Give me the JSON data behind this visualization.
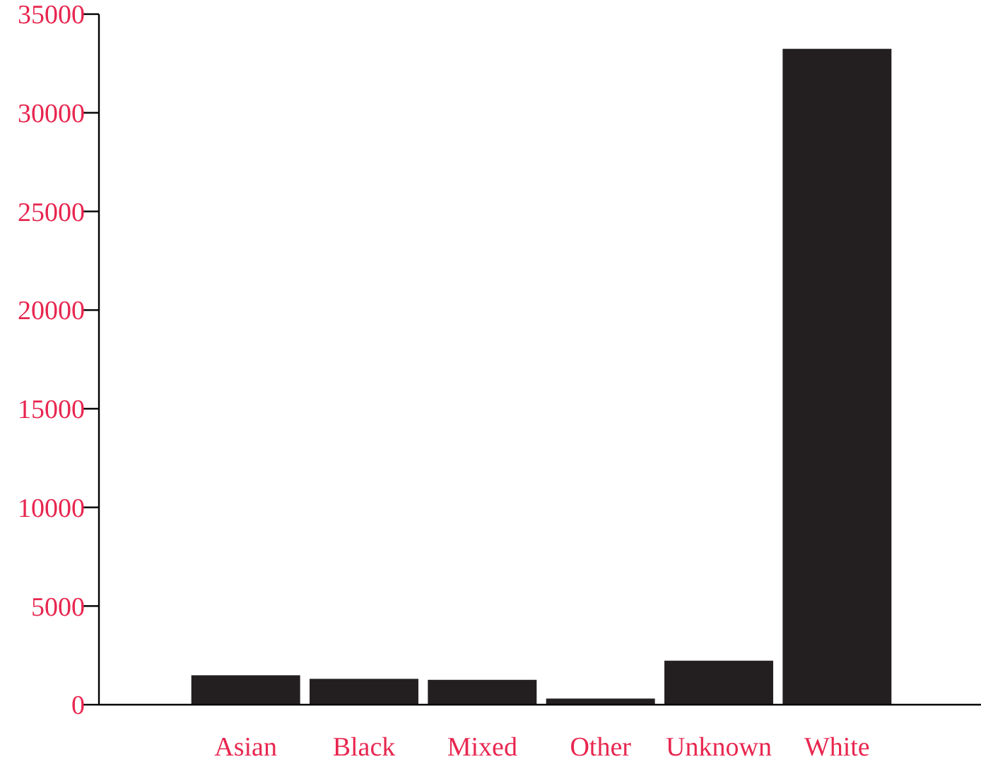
{
  "chart_data": {
    "type": "bar",
    "categories": [
      "Asian",
      "Black",
      "Mixed",
      "Other",
      "Unknown",
      "White"
    ],
    "values": [
      1490,
      1310,
      1260,
      310,
      2230,
      33240
    ],
    "color": "#231f20",
    "ylim": [
      0,
      35000
    ],
    "yticks": [
      0,
      5000,
      10000,
      15000,
      20000,
      25000,
      30000,
      35000
    ],
    "grid": false
  }
}
